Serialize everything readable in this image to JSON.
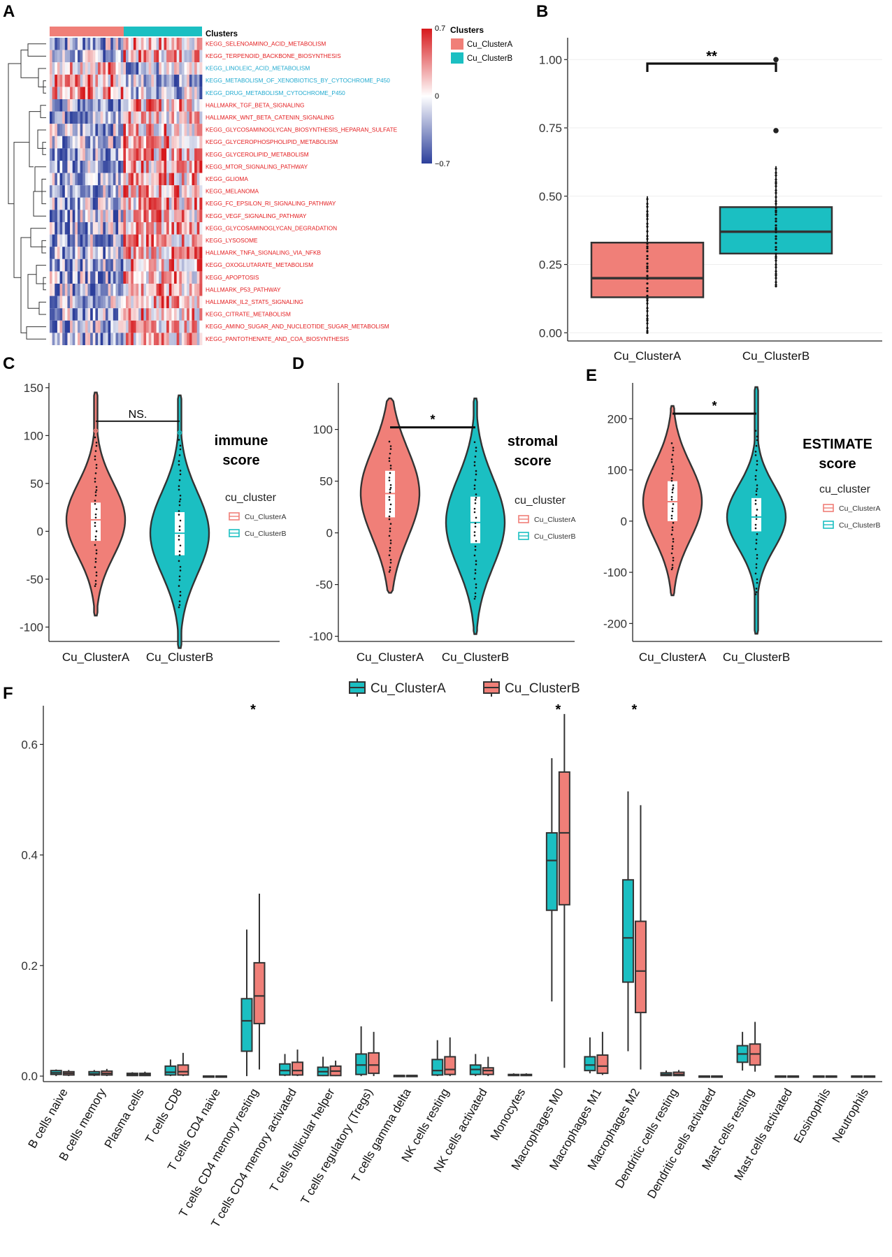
{
  "colors": {
    "clusterA": "#F07F78",
    "clusterB": "#1BBFC2",
    "hm_red": "#D7191C",
    "hm_blue": "#2C3F9B",
    "lbl_red": "#E31A1C",
    "lbl_blue": "#1FA9CF"
  },
  "panel_labels": {
    "a": "A",
    "b": "B",
    "c": "C",
    "d": "D",
    "e": "E",
    "f": "F"
  },
  "heatmap": {
    "annotation_title": "Clusters",
    "legend_title": "Clusters",
    "legend_items": [
      "Cu_ClusterA",
      "Cu_ClusterB"
    ],
    "scale": {
      "max": "0.7",
      "mid": "0",
      "min": "−0.7"
    },
    "pathways": [
      {
        "name": "KEGG_SELENOAMINO_ACID_METABOLISM",
        "direction": "up"
      },
      {
        "name": "KEGG_TERPENOID_BACKBONE_BIOSYNTHESIS",
        "direction": "up"
      },
      {
        "name": "KEGG_LINOLEIC_ACID_METABOLISM",
        "direction": "down"
      },
      {
        "name": "KEGG_METABOLISM_OF_XENOBIOTICS_BY_CYTOCHROME_P450",
        "direction": "down"
      },
      {
        "name": "KEGG_DRUG_METABOLISM_CYTOCHROME_P450",
        "direction": "down"
      },
      {
        "name": "HALLMARK_TGF_BETA_SIGNALING",
        "direction": "up"
      },
      {
        "name": "HALLMARK_WNT_BETA_CATENIN_SIGNALING",
        "direction": "up"
      },
      {
        "name": "KEGG_GLYCOSAMINOGLYCAN_BIOSYNTHESIS_HEPARAN_SULFATE",
        "direction": "up"
      },
      {
        "name": "KEGG_GLYCEROPHOSPHOLIPID_METABOLISM",
        "direction": "up"
      },
      {
        "name": "KEGG_GLYCEROLIPID_METABOLISM",
        "direction": "up"
      },
      {
        "name": "KEGG_MTOR_SIGNALING_PATHWAY",
        "direction": "up"
      },
      {
        "name": "KEGG_GLIOMA",
        "direction": "up"
      },
      {
        "name": "KEGG_MELANOMA",
        "direction": "up"
      },
      {
        "name": "KEGG_FC_EPSILON_RI_SIGNALING_PATHWAY",
        "direction": "up"
      },
      {
        "name": "KEGG_VEGF_SIGNALING_PATHWAY",
        "direction": "up"
      },
      {
        "name": "KEGG_GLYCOSAMINOGLYCAN_DEGRADATION",
        "direction": "up"
      },
      {
        "name": "KEGG_LYSOSOME",
        "direction": "up"
      },
      {
        "name": "HALLMARK_TNFA_SIGNALING_VIA_NFKB",
        "direction": "up"
      },
      {
        "name": "KEGG_OXOGLUTARATE_METABOLISM",
        "direction": "up"
      },
      {
        "name": "KEGG_APOPTOSIS",
        "direction": "up"
      },
      {
        "name": "HALLMARK_P53_PATHWAY",
        "direction": "up"
      },
      {
        "name": "HALLMARK_IL2_STAT5_SIGNALING",
        "direction": "up"
      },
      {
        "name": "KEGG_CITRATE_METABOLISM",
        "direction": "up"
      },
      {
        "name": "KEGG_AMINO_SUGAR_AND_NUCLEOTIDE_SUGAR_METABOLISM",
        "direction": "up"
      },
      {
        "name": "KEGG_PANTOTHENATE_AND_COA_BIOSYNTHESIS",
        "direction": "up"
      }
    ]
  },
  "chart_data": [
    {
      "id": "B",
      "type": "box",
      "categories": [
        "Cu_ClusterA",
        "Cu_ClusterB"
      ],
      "ylim": [
        -0.03,
        1.08
      ],
      "yticks": [
        0.0,
        0.25,
        0.5,
        0.75,
        1.0
      ],
      "ytick_labels": [
        "0.00",
        "0.25",
        "0.50",
        "0.75",
        "1.00"
      ],
      "boxes": [
        {
          "name": "Cu_ClusterA",
          "min": 0.0,
          "q1": 0.13,
          "median": 0.2,
          "q3": 0.33,
          "max": 0.5,
          "outliers": []
        },
        {
          "name": "Cu_ClusterB",
          "min": 0.17,
          "q1": 0.29,
          "median": 0.37,
          "q3": 0.46,
          "max": 0.61,
          "outliers": [
            0.74,
            1.0
          ]
        }
      ],
      "significance": "**"
    },
    {
      "id": "C",
      "type": "violin",
      "categories": [
        "Cu_ClusterA",
        "Cu_ClusterB"
      ],
      "ylim": [
        -115,
        155
      ],
      "yticks": [
        -100,
        -50,
        0,
        50,
        100,
        150
      ],
      "ytick_labels": [
        "-100",
        "-50",
        "0",
        "50",
        "100",
        "150"
      ],
      "title": "immune\nscore",
      "title_lines": [
        "immune",
        "score"
      ],
      "legend_title": "cu_cluster",
      "legend_items": [
        "Cu_ClusterA",
        "Cu_ClusterB"
      ],
      "series": [
        {
          "name": "Cu_ClusterA",
          "min": -88,
          "max": 145,
          "q1": -10,
          "median": 12,
          "q3": 30,
          "outlier": 105
        },
        {
          "name": "Cu_ClusterB",
          "min": -122,
          "max": 142,
          "q1": -25,
          "median": -2,
          "q3": 20,
          "outlier": 103
        }
      ],
      "significance": "NS.",
      "sig_y": 115
    },
    {
      "id": "D",
      "type": "violin",
      "categories": [
        "Cu_ClusterA",
        "Cu_ClusterB"
      ],
      "ylim": [
        -105,
        145
      ],
      "yticks": [
        -100,
        -50,
        0,
        50,
        100
      ],
      "ytick_labels": [
        "-100",
        "-50",
        "0",
        "50",
        "100"
      ],
      "title_lines": [
        "stromal",
        "score"
      ],
      "legend_title": "cu_cluster",
      "legend_items": [
        "Cu_ClusterA",
        "Cu_ClusterB"
      ],
      "series": [
        {
          "name": "Cu_ClusterA",
          "min": -58,
          "max": 130,
          "q1": 15,
          "median": 38,
          "q3": 60
        },
        {
          "name": "Cu_ClusterB",
          "min": -98,
          "max": 130,
          "q1": -10,
          "median": 10,
          "q3": 35
        }
      ],
      "significance": "*",
      "sig_y": 102
    },
    {
      "id": "E",
      "type": "violin",
      "categories": [
        "Cu_ClusterA",
        "Cu_ClusterB"
      ],
      "ylim": [
        -235,
        270
      ],
      "yticks": [
        -200,
        -100,
        0,
        100,
        200
      ],
      "ytick_labels": [
        "-200",
        "-100",
        "0",
        "100",
        "200"
      ],
      "title_lines": [
        "ESTIMATE",
        "score"
      ],
      "legend_title": "cu_cluster",
      "legend_items": [
        "Cu_ClusterA",
        "Cu_ClusterB"
      ],
      "series": [
        {
          "name": "Cu_ClusterA",
          "min": -145,
          "max": 225,
          "q1": 0,
          "median": 38,
          "q3": 78
        },
        {
          "name": "Cu_ClusterB",
          "min": -220,
          "max": 262,
          "q1": -20,
          "median": 8,
          "q3": 45
        }
      ],
      "significance": "*",
      "sig_y": 210
    },
    {
      "id": "F",
      "type": "box",
      "ylim": [
        -0.01,
        0.67
      ],
      "yticks": [
        0.0,
        0.2,
        0.4,
        0.6
      ],
      "ytick_labels": [
        "0.0",
        "0.2",
        "0.4",
        "0.6"
      ],
      "legend_items": [
        "Cu_ClusterA",
        "Cu_ClusterB"
      ],
      "categories": [
        "B cells naive",
        "B cells memory",
        "Plasma cells",
        "T cells CD8",
        "T cells CD4 naive",
        "T cells CD4 memory resting",
        "T cells CD4 memory activated",
        "T cells follicular helper",
        "T cells regulatory (Tregs)",
        "T cells gamma delta",
        "NK cells resting",
        "NK cells activated",
        "Monocytes",
        "Macrophages M0",
        "Macrophages M1",
        "Macrophages M2",
        "Dendritic cells resting",
        "Dendritic cells activated",
        "Mast cells resting",
        "Mast cells activated",
        "Eosinophils",
        "Neutrophils"
      ],
      "significant": [
        "",
        "",
        "",
        "",
        "",
        "*",
        "",
        "",
        "",
        "",
        "",
        "",
        "",
        "*",
        "",
        "*",
        "",
        "",
        "",
        "",
        "",
        ""
      ],
      "series": [
        {
          "name": "Cu_ClusterA",
          "boxes": [
            [
              0,
              0.003,
              0.006,
              0.01,
              0.012
            ],
            [
              0,
              0.002,
              0.004,
              0.008,
              0.011
            ],
            [
              0,
              0.001,
              0.003,
              0.005,
              0.007
            ],
            [
              0,
              0.002,
              0.007,
              0.018,
              0.03
            ],
            [
              0,
              0,
              0,
              0,
              0
            ],
            [
              0.0,
              0.045,
              0.1,
              0.14,
              0.265
            ],
            [
              0,
              0.002,
              0.01,
              0.022,
              0.04
            ],
            [
              0,
              0.001,
              0.008,
              0.016,
              0.035
            ],
            [
              0,
              0.003,
              0.02,
              0.04,
              0.09
            ],
            [
              0,
              0,
              0.001,
              0.001,
              0.002
            ],
            [
              0,
              0.002,
              0.01,
              0.03,
              0.065
            ],
            [
              0,
              0.003,
              0.012,
              0.02,
              0.04
            ],
            [
              0,
              0.001,
              0.002,
              0.003,
              0.005
            ],
            [
              0.135,
              0.3,
              0.39,
              0.44,
              0.575
            ],
            [
              0.005,
              0.01,
              0.02,
              0.035,
              0.07
            ],
            [
              0.045,
              0.17,
              0.25,
              0.355,
              0.515
            ],
            [
              0,
              0.001,
              0.003,
              0.006,
              0.01
            ],
            [
              0,
              0,
              0,
              0,
              0
            ],
            [
              0.01,
              0.025,
              0.04,
              0.055,
              0.08
            ],
            [
              0,
              0,
              0,
              0,
              0
            ],
            [
              0,
              0,
              0,
              0,
              0
            ],
            [
              0,
              0,
              0,
              0,
              0
            ]
          ]
        },
        {
          "name": "Cu_ClusterB",
          "boxes": [
            [
              0,
              0.002,
              0.005,
              0.008,
              0.011
            ],
            [
              0,
              0.002,
              0.005,
              0.009,
              0.013
            ],
            [
              0,
              0.001,
              0.003,
              0.005,
              0.008
            ],
            [
              0,
              0.002,
              0.008,
              0.02,
              0.042
            ],
            [
              0,
              0,
              0,
              0,
              0
            ],
            [
              0.012,
              0.095,
              0.145,
              0.205,
              0.33
            ],
            [
              0,
              0.002,
              0.01,
              0.025,
              0.048
            ],
            [
              0,
              0.001,
              0.009,
              0.018,
              0.028
            ],
            [
              0,
              0.005,
              0.02,
              0.042,
              0.08
            ],
            [
              0,
              0,
              0.001,
              0.001,
              0.002
            ],
            [
              0,
              0.003,
              0.012,
              0.035,
              0.07
            ],
            [
              0,
              0.003,
              0.01,
              0.015,
              0.035
            ],
            [
              0,
              0.001,
              0.002,
              0.003,
              0.005
            ],
            [
              0.015,
              0.31,
              0.44,
              0.55,
              0.655
            ],
            [
              0.002,
              0.005,
              0.018,
              0.038,
              0.08
            ],
            [
              0.012,
              0.115,
              0.19,
              0.28,
              0.49
            ],
            [
              0,
              0.001,
              0.003,
              0.007,
              0.011
            ],
            [
              0,
              0,
              0,
              0,
              0
            ],
            [
              0.008,
              0.02,
              0.04,
              0.058,
              0.098
            ],
            [
              0,
              0,
              0,
              0,
              0
            ],
            [
              0,
              0,
              0,
              0,
              0
            ],
            [
              0,
              0,
              0,
              0,
              0
            ]
          ]
        }
      ]
    }
  ]
}
